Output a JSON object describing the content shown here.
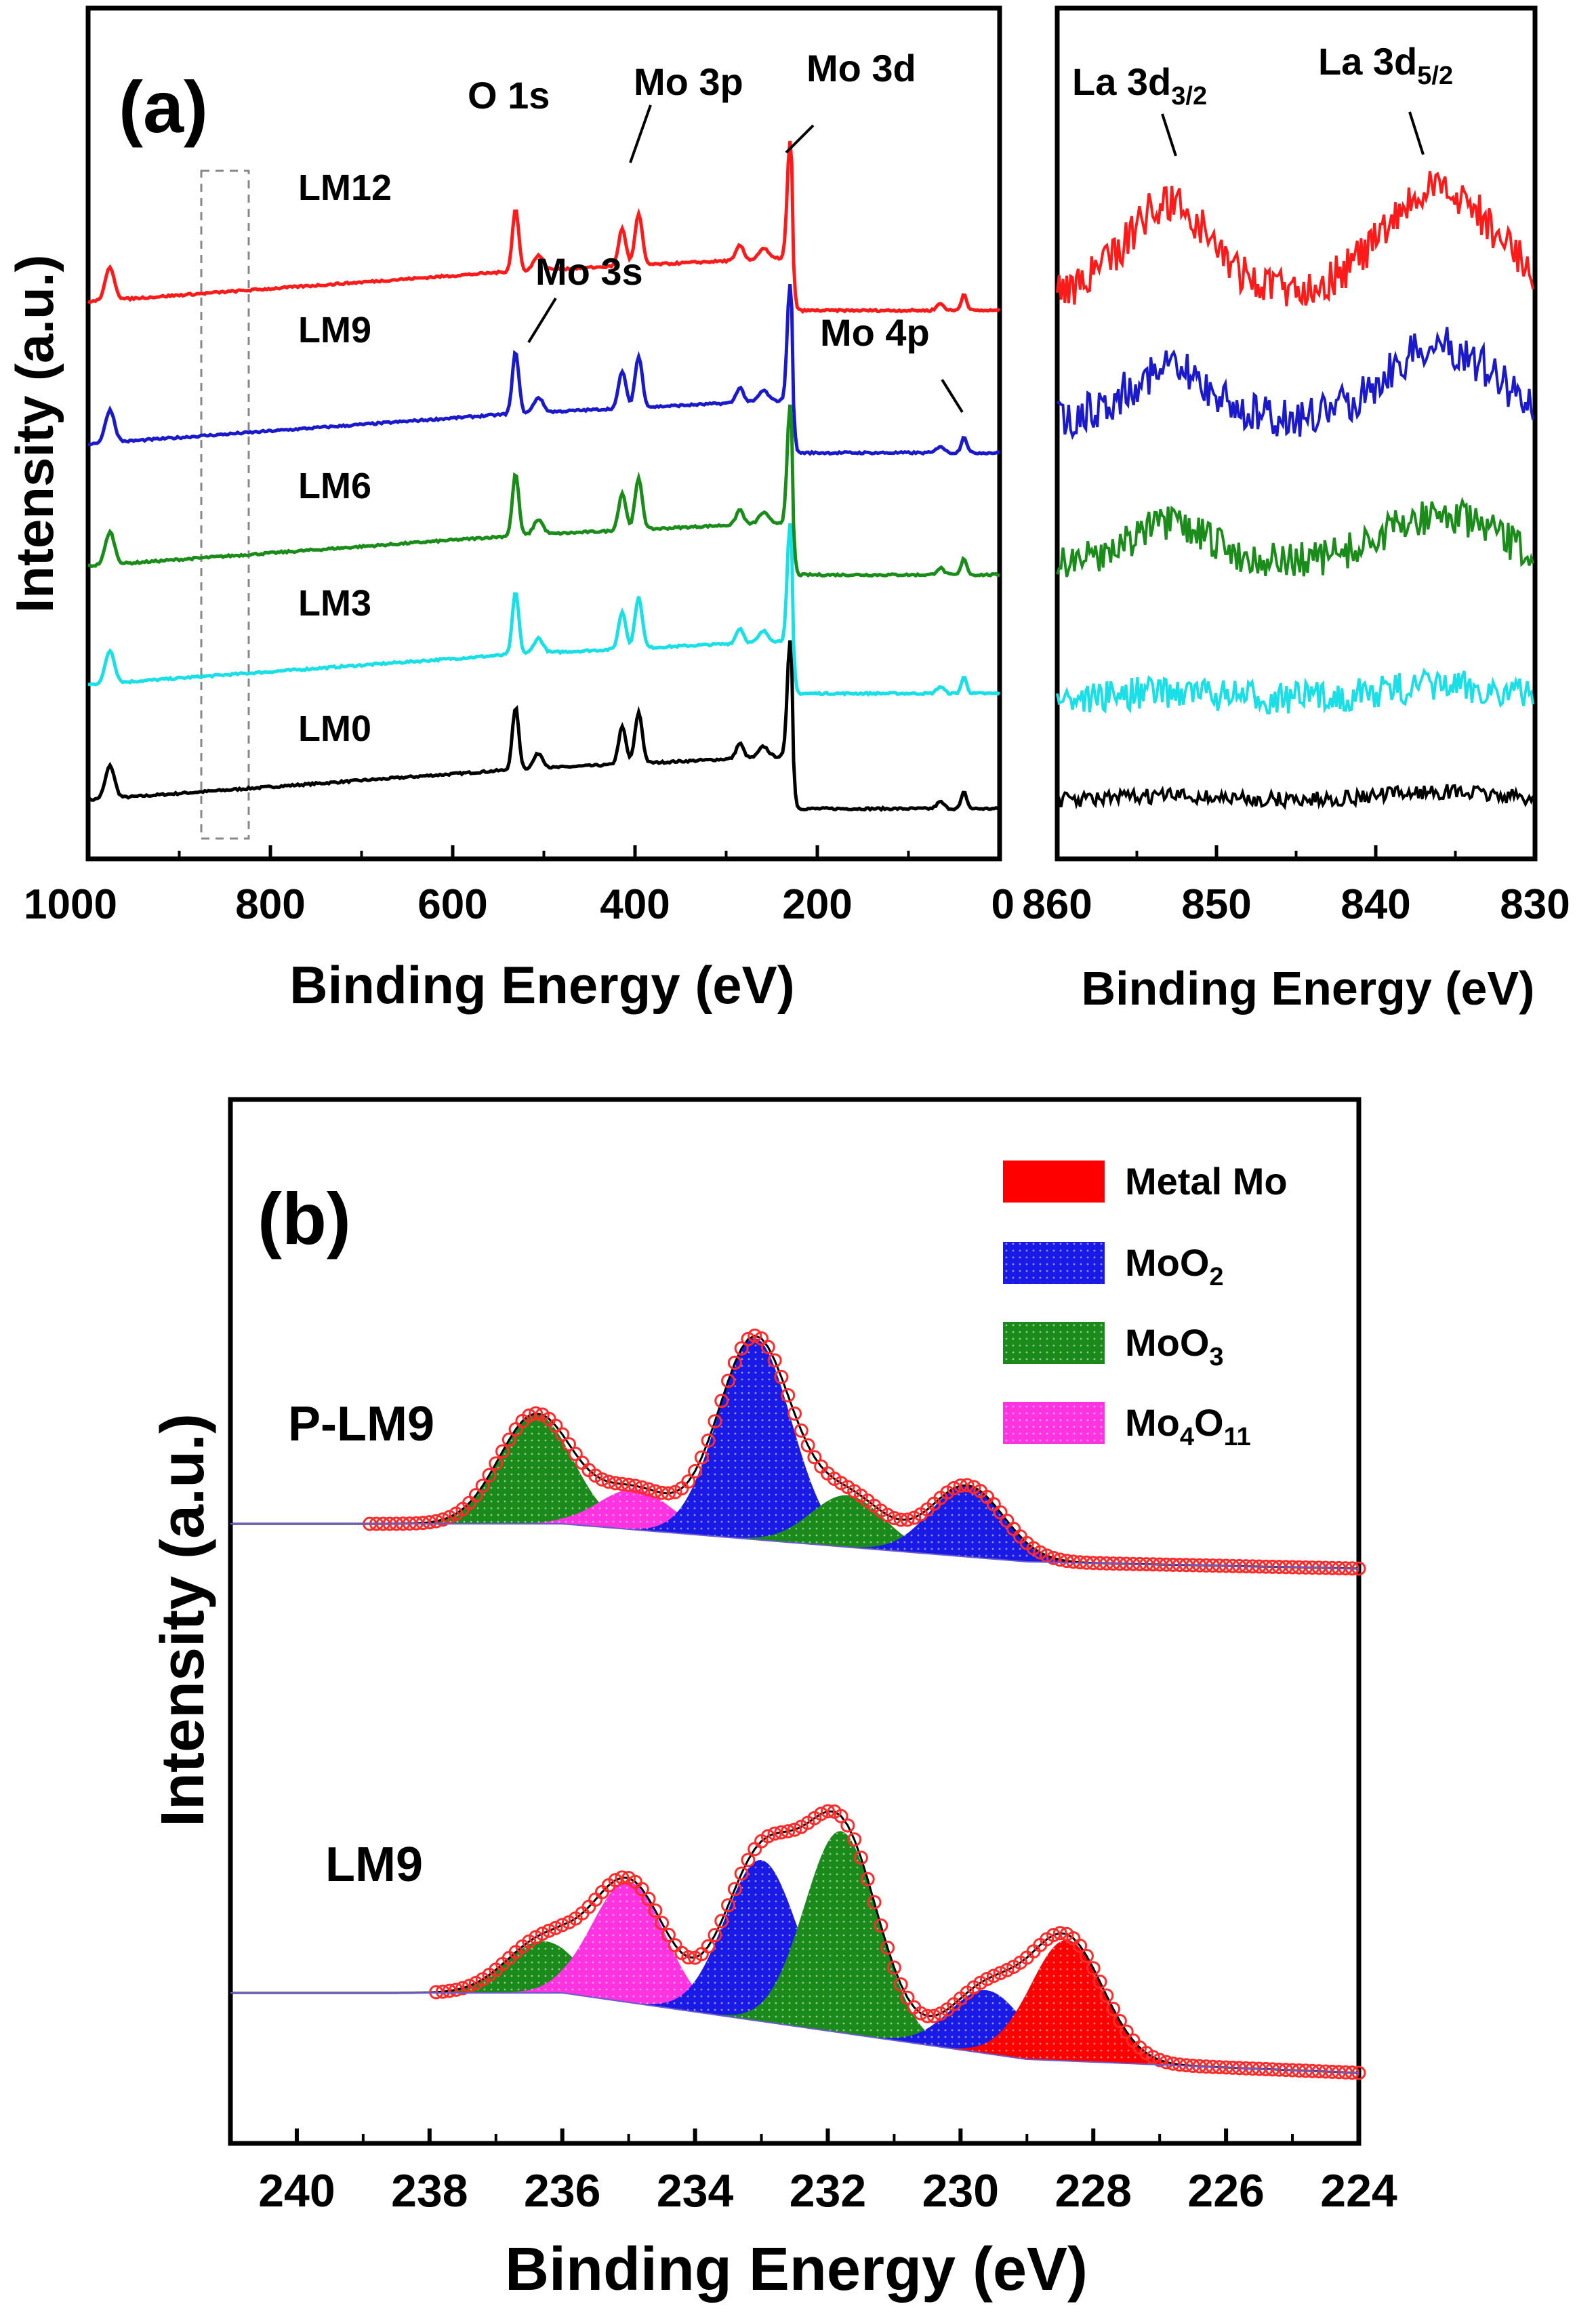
{
  "chart_data": [
    {
      "id": "a-left",
      "type": "line",
      "panel_label": "(a)",
      "xlabel": "Binding Energy (eV)",
      "ylabel": "Intensity (a.u.)",
      "xlim": [
        1000,
        0
      ],
      "xticks": [
        "1000",
        "800",
        "600",
        "400",
        "200",
        "0"
      ],
      "xtick_values": [
        1000,
        800,
        600,
        400,
        200,
        0
      ],
      "series": [
        {
          "name": "LM12",
          "color": "#ff1a1a",
          "offset": 4.0
        },
        {
          "name": "LM9",
          "color": "#1a1acc",
          "offset": 3.0
        },
        {
          "name": "LM6",
          "color": "#1a8c1a",
          "offset": 2.0
        },
        {
          "name": "LM3",
          "color": "#19e0e6",
          "offset": 1.0
        },
        {
          "name": "LM0",
          "color": "#000000",
          "offset": 0.0
        }
      ],
      "annotations": [
        {
          "text": "O 1s",
          "x": 531
        },
        {
          "text": "Mo 3p",
          "x": 398
        },
        {
          "text": "Mo 3d",
          "x": 229
        },
        {
          "text": "Mo 3s",
          "x": 506
        },
        {
          "text": "Mo 4p",
          "x": 38
        }
      ]
    },
    {
      "id": "a-right",
      "type": "line",
      "xlabel": "Binding Energy (eV)",
      "xlim": [
        860,
        830
      ],
      "xticks": [
        "860",
        "850",
        "840",
        "830"
      ],
      "xtick_values": [
        860,
        850,
        840,
        830
      ],
      "series": [
        {
          "name": "LM12",
          "color": "#ff1a1a"
        },
        {
          "name": "LM9",
          "color": "#1a1acc"
        },
        {
          "name": "LM6",
          "color": "#1a8c1a"
        },
        {
          "name": "LM3",
          "color": "#19e0e6"
        },
        {
          "name": "LM0",
          "color": "#000000"
        }
      ],
      "annotations": [
        {
          "text": "La 3d",
          "sub": "3/2",
          "x": 853
        },
        {
          "text": "La 3d",
          "sub": "5/2",
          "x": 835
        }
      ]
    },
    {
      "id": "b",
      "type": "area",
      "panel_label": "(b)",
      "xlabel": "Binding Energy (eV)",
      "ylabel": "Intensity (a.u.)",
      "xlim": [
        241,
        224
      ],
      "xticks": [
        "240",
        "238",
        "236",
        "234",
        "232",
        "230",
        "228",
        "226",
        "224"
      ],
      "xtick_values": [
        240,
        238,
        236,
        234,
        232,
        230,
        228,
        226,
        224
      ],
      "legend": [
        {
          "label": "Metal Mo",
          "color": "#ff0000"
        },
        {
          "label": "MoO",
          "sub": "2",
          "color": "#1a1ae6"
        },
        {
          "label": "MoO",
          "sub": "3",
          "color": "#1a8a1a"
        },
        {
          "label": "Mo",
          "sub": "4",
          "label2": "O",
          "sub2": "11",
          "color": "#ff33e0"
        }
      ],
      "samples": [
        {
          "name": "P-LM9",
          "components": [
            {
              "species": "MoO3",
              "center": 236.4,
              "height": 0.95
            },
            {
              "species": "Mo4O11",
              "center": 234.9,
              "height": 0.35
            },
            {
              "species": "MoO2",
              "center": 233.1,
              "height": 1.75
            },
            {
              "species": "MoO3",
              "center": 231.7,
              "height": 0.45
            },
            {
              "species": "MoO2",
              "center": 229.9,
              "height": 0.62
            }
          ]
        },
        {
          "name": "LM9",
          "components": [
            {
              "species": "MoO3",
              "center": 236.3,
              "height": 0.45
            },
            {
              "species": "Mo4O11",
              "center": 235.0,
              "height": 1.05
            },
            {
              "species": "MoO2",
              "center": 233.0,
              "height": 1.4
            },
            {
              "species": "MoO3",
              "center": 231.8,
              "height": 1.75
            },
            {
              "species": "MoO2",
              "center": 229.6,
              "height": 0.55
            },
            {
              "species": "Metal Mo",
              "center": 228.4,
              "height": 1.05
            }
          ]
        }
      ]
    }
  ]
}
